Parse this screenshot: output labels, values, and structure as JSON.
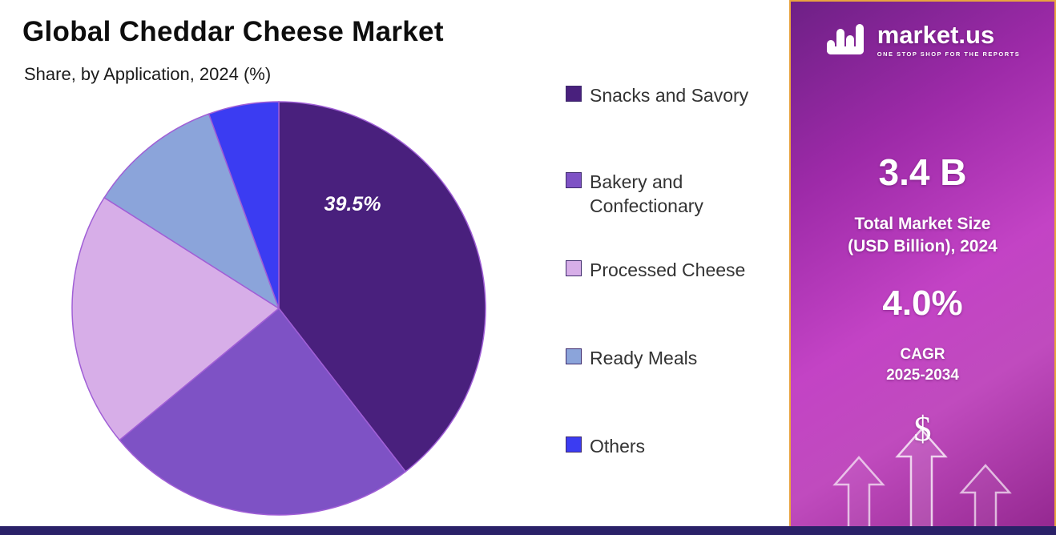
{
  "header": {
    "title": "Global Cheddar Cheese Market",
    "subtitle": "Share, by Application, 2024 (%)"
  },
  "chart_data": {
    "type": "pie",
    "title": "Global Cheddar Cheese Market",
    "subtitle": "Share, by Application, 2024 (%)",
    "categories": [
      "Snacks and Savory",
      "Bakery and Confectionary",
      "Processed Cheese",
      "Ready Meals",
      "Others"
    ],
    "values": [
      39.5,
      24.5,
      20.0,
      10.5,
      5.5
    ],
    "colors": [
      "#49207d",
      "#7e52c5",
      "#d7aee8",
      "#8ba4da",
      "#3b3cf2"
    ],
    "slice_stroke": "#a05fd6",
    "start_angle_deg": 0,
    "direction": "clockwise",
    "legend_position": "right",
    "labeled_slice": {
      "category": "Snacks and Savory",
      "label": "39.5%"
    }
  },
  "legend": {
    "items": [
      {
        "label": "Snacks and Savory",
        "color": "#49207d"
      },
      {
        "label": "Bakery and Confectionary",
        "color": "#7e52c5"
      },
      {
        "label": "Processed Cheese",
        "color": "#d7aee8"
      },
      {
        "label": "Ready Meals",
        "color": "#8ba4da"
      },
      {
        "label": "Others",
        "color": "#3b3cf2"
      }
    ]
  },
  "sidebar": {
    "logo": {
      "brand": "market.us",
      "tagline": "ONE STOP SHOP FOR THE REPORTS"
    },
    "market_size_value": "3.4 B",
    "market_size_label_line1": "Total Market Size",
    "market_size_label_line2": "(USD Billion), 2024",
    "cagr_value": "4.0%",
    "cagr_label_line1": "CAGR",
    "cagr_label_line2": "2025-2034",
    "dollar_symbol": "$",
    "colors": {
      "border": "#e8a43f",
      "gradient_main": "#b232b9",
      "bottom_strip": "#2a2168"
    }
  }
}
